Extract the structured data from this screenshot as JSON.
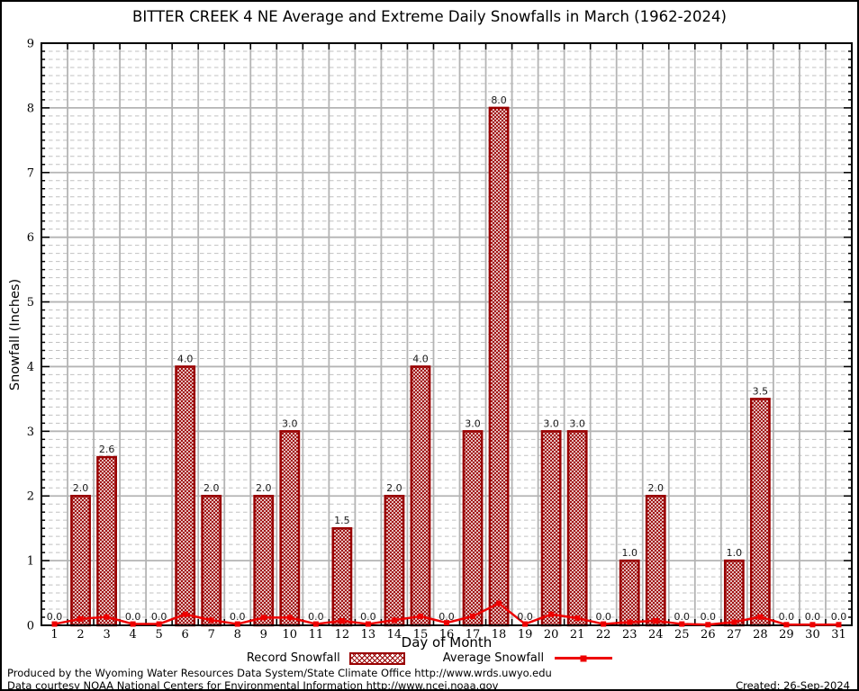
{
  "title": "BITTER CREEK 4 NE Average and Extreme Daily Snowfalls in March (1962-2024)",
  "y_axis_label": "Snowfall (Inches)",
  "x_axis_label": "Day of Month",
  "legend": {
    "record_label": "Record Snowfall",
    "average_label": "Average Snowfall"
  },
  "footer": {
    "line1": "Produced by the Wyoming Water Resources Data System/State Climate Office http://www.wrds.uwyo.edu",
    "line2": "Data courtesy NOAA National Centers for Environmental Information http://www.ncei.noaa.gov",
    "created": "Created: 26-Sep-2024"
  },
  "colors": {
    "bar_border": "#990000",
    "bar_hatch": "#990000",
    "average_line": "#ee0000",
    "grid_major": "#b4b4b4",
    "grid_minor": "#c0c0c0",
    "axis": "#000000",
    "value_label": "#1a1a1a"
  },
  "chart_data": {
    "type": "bar",
    "title": "BITTER CREEK 4 NE Average and Extreme Daily Snowfalls in March (1962-2024)",
    "xlabel": "Day of Month",
    "ylabel": "Snowfall (Inches)",
    "ylim": [
      0,
      9
    ],
    "y_major_step": 1,
    "y_minor_divisions": 8,
    "grid": true,
    "legend_position": "bottom",
    "bar_value_labels_shown": true,
    "categories": [
      1,
      2,
      3,
      4,
      5,
      6,
      7,
      8,
      9,
      10,
      11,
      12,
      13,
      14,
      15,
      16,
      17,
      18,
      19,
      20,
      21,
      22,
      23,
      24,
      25,
      26,
      27,
      28,
      29,
      30,
      31
    ],
    "series": [
      {
        "name": "Record Snowfall",
        "type": "bar",
        "values": [
          0.0,
          2.0,
          2.6,
          0.0,
          0.0,
          4.0,
          2.0,
          0.0,
          2.0,
          3.0,
          0.0,
          1.5,
          0.0,
          2.0,
          4.0,
          0.0,
          3.0,
          8.0,
          0.0,
          3.0,
          3.0,
          0.0,
          1.0,
          2.0,
          0.0,
          0.0,
          1.0,
          3.5,
          0.0,
          0.0,
          0.0
        ]
      },
      {
        "name": "Average Snowfall",
        "type": "line",
        "values": [
          0.02,
          0.1,
          0.13,
          0.02,
          0.02,
          0.17,
          0.08,
          0.02,
          0.12,
          0.12,
          0.02,
          0.07,
          0.02,
          0.08,
          0.14,
          0.04,
          0.14,
          0.34,
          0.02,
          0.17,
          0.11,
          0.02,
          0.05,
          0.07,
          0.02,
          0.01,
          0.05,
          0.13,
          0.01,
          0.01,
          0.01
        ]
      }
    ]
  }
}
